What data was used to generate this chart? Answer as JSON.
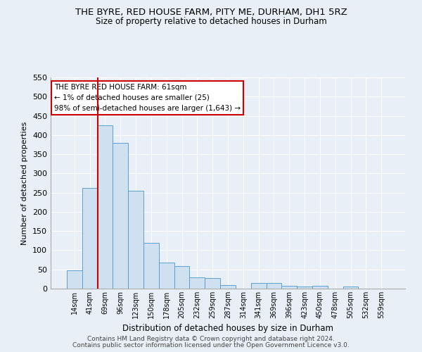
{
  "title1": "THE BYRE, RED HOUSE FARM, PITY ME, DURHAM, DH1 5RZ",
  "title2": "Size of property relative to detached houses in Durham",
  "xlabel": "Distribution of detached houses by size in Durham",
  "ylabel": "Number of detached properties",
  "bar_labels": [
    "14sqm",
    "41sqm",
    "69sqm",
    "96sqm",
    "123sqm",
    "150sqm",
    "178sqm",
    "205sqm",
    "232sqm",
    "259sqm",
    "287sqm",
    "314sqm",
    "341sqm",
    "369sqm",
    "396sqm",
    "423sqm",
    "450sqm",
    "478sqm",
    "505sqm",
    "532sqm",
    "559sqm"
  ],
  "bar_heights": [
    47,
    263,
    425,
    380,
    255,
    120,
    67,
    58,
    30,
    27,
    10,
    0,
    15,
    15,
    8,
    5,
    8,
    0,
    5,
    0,
    0
  ],
  "bar_color": "#cfe0f0",
  "bar_edge_color": "#5a9fd4",
  "red_line_x": 1.5,
  "red_line_color": "#cc0000",
  "annotation_text": "THE BYRE RED HOUSE FARM: 61sqm\n← 1% of detached houses are smaller (25)\n98% of semi-detached houses are larger (1,643) →",
  "annotation_box_color": "#ffffff",
  "annotation_box_edge": "#cc0000",
  "ylim": [
    0,
    550
  ],
  "yticks": [
    0,
    50,
    100,
    150,
    200,
    250,
    300,
    350,
    400,
    450,
    500,
    550
  ],
  "footnote1": "Contains HM Land Registry data © Crown copyright and database right 2024.",
  "footnote2": "Contains public sector information licensed under the Open Government Licence v3.0.",
  "bg_color": "#e8eff6",
  "plot_bg_color": "#e8eff6",
  "grid_color": "#ffffff"
}
